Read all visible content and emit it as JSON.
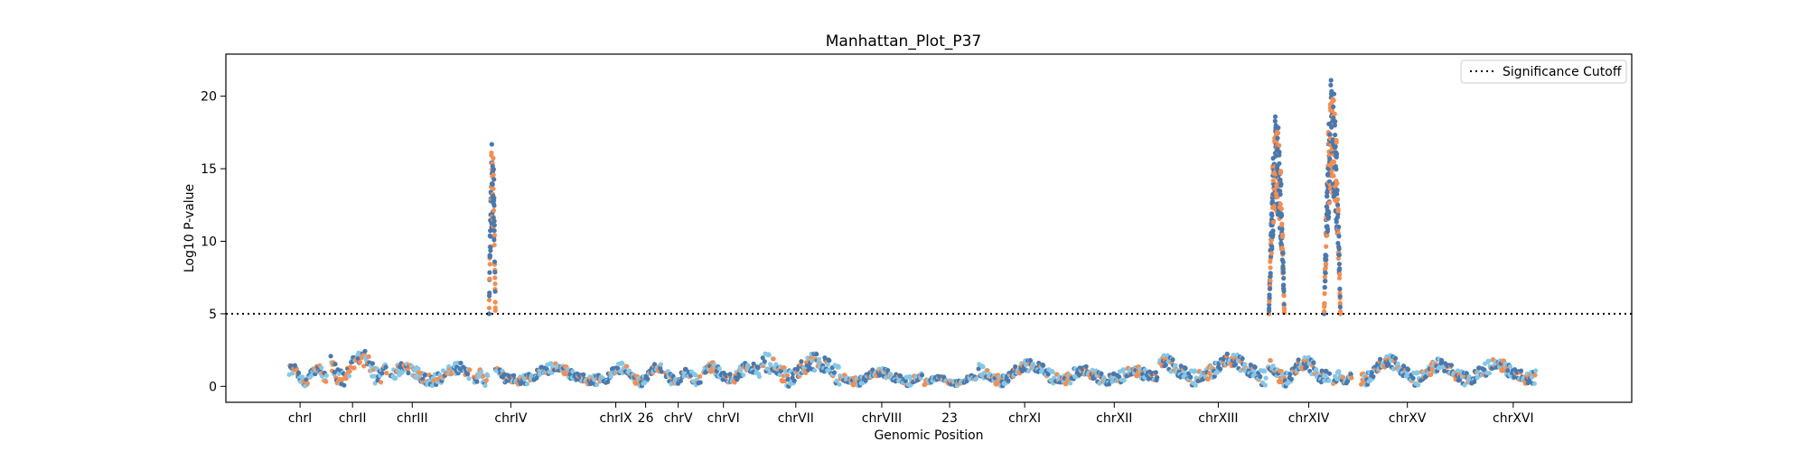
{
  "chart_data": {
    "type": "scatter",
    "title": "Manhattan_Plot_P37",
    "xlabel": "Genomic Position",
    "ylabel": "Log10 P-value",
    "ylim": [
      -1.1,
      22.9
    ],
    "xlim": [
      0,
      1554
    ],
    "y_ticks": [
      "0",
      "5",
      "10",
      "15",
      "20"
    ],
    "y_tick_values": [
      0,
      5,
      10,
      15,
      20
    ],
    "grid": false,
    "legend": {
      "placement": "top-right",
      "entries": [
        "Significance Cutoff"
      ]
    },
    "threshold": {
      "name": "Significance Cutoff",
      "value": 5
    },
    "colors": {
      "orange": "#f28e54",
      "darkblue": "#4a78ad",
      "lightblue": "#86c7e6",
      "threshold": "#000000"
    },
    "x_ticks": [
      {
        "label": "chrI",
        "pos": 82
      },
      {
        "label": "chrII",
        "pos": 140
      },
      {
        "label": "chrIII",
        "pos": 206
      },
      {
        "label": "chrIV",
        "pos": 315
      },
      {
        "label": "chrIX",
        "pos": 431
      },
      {
        "label": "26",
        "pos": 464
      },
      {
        "label": "chrV",
        "pos": 500
      },
      {
        "label": "chrVI",
        "pos": 550
      },
      {
        "label": "chrVII",
        "pos": 630
      },
      {
        "label": "chrVIII",
        "pos": 725
      },
      {
        "label": "23",
        "pos": 800
      },
      {
        "label": "chrXI",
        "pos": 883
      },
      {
        "label": "chrXII",
        "pos": 982
      },
      {
        "label": "chrXIII",
        "pos": 1097
      },
      {
        "label": "chrXIV",
        "pos": 1197
      },
      {
        "label": "chrXV",
        "pos": 1306
      },
      {
        "label": "chrXVI",
        "pos": 1423
      }
    ],
    "segments": [
      {
        "x0": 70,
        "x1": 112,
        "base": 0.9,
        "amp": 1.1
      },
      {
        "x0": 116,
        "x1": 178,
        "base": 1.5,
        "amp": 2.0
      },
      {
        "x0": 182,
        "x1": 270,
        "base": 0.8,
        "amp": 1.4
      },
      {
        "x0": 274,
        "x1": 290,
        "base": 0.6,
        "amp": 1.0
      },
      {
        "x0": 298,
        "x1": 418,
        "base": 0.9,
        "amp": 1.2
      },
      {
        "x0": 420,
        "x1": 482,
        "base": 0.9,
        "amp": 1.2
      },
      {
        "x0": 486,
        "x1": 525,
        "base": 0.5,
        "amp": 1.2
      },
      {
        "x0": 528,
        "x1": 590,
        "base": 0.9,
        "amp": 1.4
      },
      {
        "x0": 592,
        "x1": 680,
        "base": 1.0,
        "amp": 2.2
      },
      {
        "x0": 682,
        "x1": 770,
        "base": 0.6,
        "amp": 1.1
      },
      {
        "x0": 772,
        "x1": 830,
        "base": 0.4,
        "amp": 0.6
      },
      {
        "x0": 832,
        "x1": 935,
        "base": 1.0,
        "amp": 1.4
      },
      {
        "x0": 937,
        "x1": 1030,
        "base": 0.6,
        "amp": 1.4
      },
      {
        "x0": 1032,
        "x1": 1150,
        "base": 1.2,
        "amp": 1.8
      },
      {
        "x0": 1152,
        "x1": 1220,
        "base": 1.0,
        "amp": 1.8
      },
      {
        "x0": 1224,
        "x1": 1245,
        "base": 0.5,
        "amp": 0.9
      },
      {
        "x0": 1255,
        "x1": 1345,
        "base": 1.2,
        "amp": 1.6
      },
      {
        "x0": 1347,
        "x1": 1448,
        "base": 1.0,
        "amp": 1.6
      }
    ],
    "peaks": [
      {
        "x0": 291,
        "x1": 298,
        "ymin": 5.0,
        "ymax": 17.5
      },
      {
        "x0": 1153,
        "x1": 1170,
        "ymin": 5.0,
        "ymax": 19.0
      },
      {
        "x0": 1214,
        "x1": 1232,
        "ymin": 5.0,
        "ymax": 21.5
      }
    ]
  }
}
